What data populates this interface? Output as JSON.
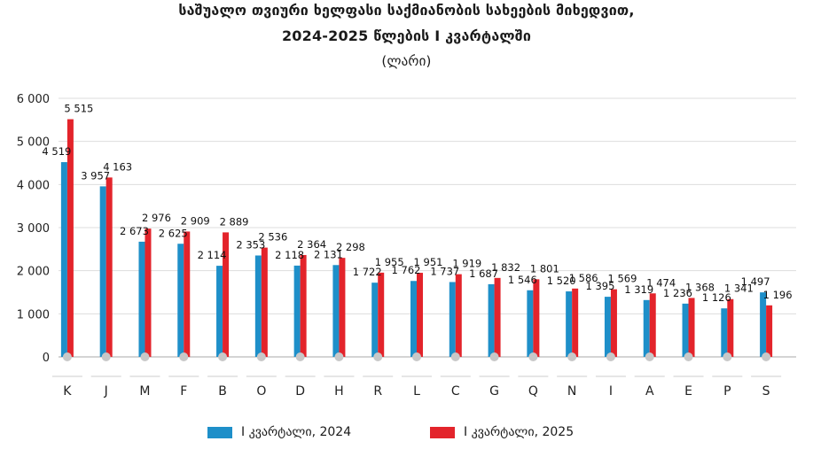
{
  "chart_data": {
    "type": "bar",
    "title_line1": "საშუალო თვიური ხელფასი საქმიანობის სახეების მიხედვით,",
    "title_line2": "2024-2025 წლების I კვარტალში",
    "subtitle": "(ლარი)",
    "categories": [
      "K",
      "J",
      "M",
      "F",
      "B",
      "O",
      "D",
      "H",
      "R",
      "L",
      "C",
      "G",
      "Q",
      "N",
      "I",
      "A",
      "E",
      "P",
      "S"
    ],
    "series": [
      {
        "name": "I კვარტალი, 2024",
        "color": "#1e8fc9",
        "values": [
          4519,
          3957,
          2673,
          2625,
          2114,
          2353,
          2118,
          2131,
          1722,
          1762,
          1737,
          1687,
          1546,
          1520,
          1395,
          1319,
          1236,
          1126,
          1497
        ],
        "labels": [
          "4 519",
          "3 957",
          "2 673",
          "2 625",
          "2 114",
          "2 353",
          "2 118",
          "2 131",
          "1 722",
          "1 762",
          "1 737",
          "1 687",
          "1 546",
          "1 520",
          "1 395",
          "1 319",
          "1 236",
          "1 126",
          "1 497"
        ]
      },
      {
        "name": "I კვარტალი, 2025",
        "color": "#e3242b",
        "values": [
          5515,
          4163,
          2976,
          2909,
          2889,
          2536,
          2364,
          2298,
          1955,
          1951,
          1919,
          1832,
          1801,
          1586,
          1569,
          1474,
          1368,
          1341,
          1196
        ],
        "labels": [
          "5 515",
          "4 163",
          "2 976",
          "2 909",
          "2 889",
          "2 536",
          "2 364",
          "2 298",
          "1 955",
          "1 951",
          "1 919",
          "1 832",
          "1 801",
          "1 586",
          "1 569",
          "1 474",
          "1 368",
          "1 341",
          "1 196"
        ]
      }
    ],
    "yticks": [
      0,
      1000,
      2000,
      3000,
      4000,
      5000,
      6000
    ],
    "ytick_labels": [
      "0",
      "1 000",
      "2 000",
      "3 000",
      "4 000",
      "5 000",
      "6 000"
    ],
    "ylim": [
      0,
      6000
    ],
    "grid": true,
    "legend_position": "bottom-center"
  }
}
